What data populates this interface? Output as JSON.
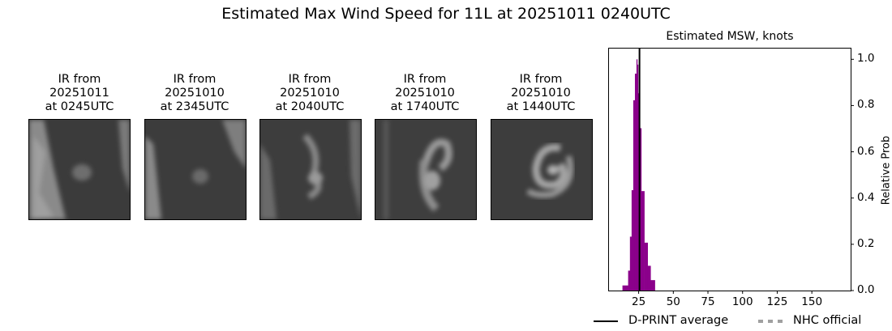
{
  "title": "Estimated Max Wind Speed for 11L at 20251011 0240UTC",
  "panels": [
    {
      "line1": "IR from",
      "line2": "20251011",
      "line3": "at 0245UTC"
    },
    {
      "line1": "IR from",
      "line2": "20251010",
      "line3": "at 2345UTC"
    },
    {
      "line1": "IR from",
      "line2": "20251010",
      "line3": "at 2040UTC"
    },
    {
      "line1": "IR from",
      "line2": "20251010",
      "line3": "at 1740UTC"
    },
    {
      "line1": "IR from",
      "line2": "20251010",
      "line3": "at 1440UTC"
    }
  ],
  "chart_data": {
    "type": "bar",
    "title": "Estimated MSW, knots",
    "xlabel": "",
    "ylabel": "Relative Prob",
    "xlim": [
      3,
      178
    ],
    "ylim": [
      0,
      1.05
    ],
    "xticks": [
      25,
      50,
      75,
      100,
      125,
      150
    ],
    "yticks": [
      0.0,
      0.2,
      0.4,
      0.6,
      0.8,
      1.0
    ],
    "xtick_labels": [
      "25",
      "50",
      "75",
      "100",
      "125",
      "150"
    ],
    "ytick_labels": [
      "0.0",
      "0.2",
      "0.4",
      "0.6",
      "0.8",
      "1.0"
    ],
    "bar_color": "#8b008b",
    "bins": [
      {
        "left": 13.3,
        "right": 17.4,
        "value": 0.022
      },
      {
        "left": 17.4,
        "right": 18.7,
        "value": 0.086
      },
      {
        "left": 18.7,
        "right": 19.9,
        "value": 0.233
      },
      {
        "left": 19.9,
        "right": 21.1,
        "value": 0.434
      },
      {
        "left": 21.1,
        "right": 22.3,
        "value": 0.823
      },
      {
        "left": 22.3,
        "right": 23.4,
        "value": 0.938
      },
      {
        "left": 23.4,
        "right": 24.0,
        "value": 1.0
      },
      {
        "left": 24.0,
        "right": 24.6,
        "value": 0.977
      },
      {
        "left": 24.6,
        "right": 25.8,
        "value": 0.853
      },
      {
        "left": 25.8,
        "right": 26.9,
        "value": 0.702
      },
      {
        "left": 26.9,
        "right": 29.1,
        "value": 0.43
      },
      {
        "left": 29.1,
        "right": 31.5,
        "value": 0.207
      },
      {
        "left": 31.5,
        "right": 33.6,
        "value": 0.107
      },
      {
        "left": 33.6,
        "right": 36.7,
        "value": 0.045
      }
    ],
    "dprint_average": 25.6,
    "legend": {
      "placement": "bottom",
      "entries": [
        {
          "label": "D-PRINT average",
          "color": "#000000",
          "style": "solid"
        },
        {
          "label": "NHC official",
          "color": "#a0a0a0",
          "style": "dotted"
        }
      ]
    }
  }
}
